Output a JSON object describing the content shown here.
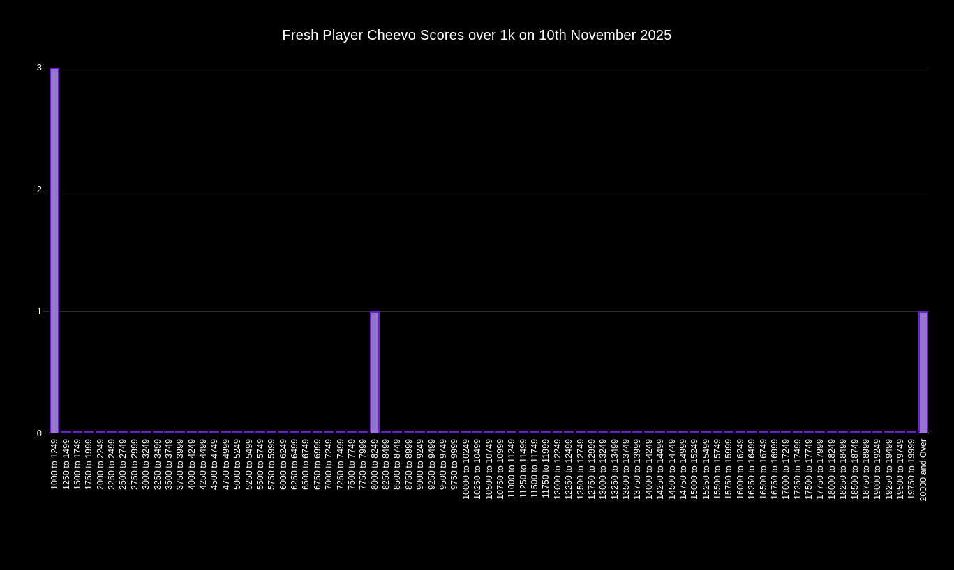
{
  "title": "Fresh Player Cheevo Scores over 1k on 10th November 2025",
  "colors": {
    "background": "#000000",
    "text": "#ffffff",
    "bar_fill": "#9575cd",
    "bar_border": "#6a1fc8",
    "gridline": "#2a2a2a",
    "axis_line": "#cfcfcf"
  },
  "chart_data": {
    "type": "bar",
    "title": "Fresh Player Cheevo Scores over 1k on 10th November 2025",
    "xlabel": "",
    "ylabel": "",
    "ylim": [
      0,
      3
    ],
    "yticks": [
      0,
      1,
      2,
      3
    ],
    "grid": true,
    "legend": false,
    "bar_color": "#9575cd",
    "bar_border_color": "#6a1fc8",
    "categories": [
      "1000 to 1249",
      "1250 to 1499",
      "1500 to 1749",
      "1750 to 1999",
      "2000 to 2249",
      "2250 to 2499",
      "2500 to 2749",
      "2750 to 2999",
      "3000 to 3249",
      "3250 to 3499",
      "3500 to 3749",
      "3750 to 3999",
      "4000 to 4249",
      "4250 to 4499",
      "4500 to 4749",
      "4750 to 4999",
      "5000 to 5249",
      "5250 to 5499",
      "5500 to 5749",
      "5750 to 5999",
      "6000 to 6249",
      "6250 to 6499",
      "6500 to 6749",
      "6750 to 6999",
      "7000 to 7249",
      "7250 to 7499",
      "7500 to 7749",
      "7750 to 7999",
      "8000 to 8249",
      "8250 to 8499",
      "8500 to 8749",
      "8750 to 8999",
      "9000 to 9249",
      "9250 to 9499",
      "9500 to 9749",
      "9750 to 9999",
      "10000 to 10249",
      "10250 to 10499",
      "10500 to 10749",
      "10750 to 10999",
      "11000 to 11249",
      "11250 to 11499",
      "11500 to 11749",
      "11750 to 11999",
      "12000 to 12249",
      "12250 to 12499",
      "12500 to 12749",
      "12750 to 12999",
      "13000 to 13249",
      "13250 to 13499",
      "13500 to 13749",
      "13750 to 13999",
      "14000 to 14249",
      "14250 to 14499",
      "14500 to 14749",
      "14750 to 14999",
      "15000 to 15249",
      "15250 to 15499",
      "15500 to 15749",
      "15750 to 15999",
      "16000 to 16249",
      "16250 to 16499",
      "16500 to 16749",
      "16750 to 16999",
      "17000 to 17249",
      "17250 to 17499",
      "17500 to 17749",
      "17750 to 17999",
      "18000 to 18249",
      "18250 to 18499",
      "18500 to 18749",
      "18750 to 18999",
      "19000 to 19249",
      "19250 to 19499",
      "19500 to 19749",
      "19750 to 19999",
      "20000 and Over"
    ],
    "values": [
      3,
      0,
      0,
      0,
      0,
      0,
      0,
      0,
      0,
      0,
      0,
      0,
      0,
      0,
      0,
      0,
      0,
      0,
      0,
      0,
      0,
      0,
      0,
      0,
      0,
      0,
      0,
      0,
      1,
      0,
      0,
      0,
      0,
      0,
      0,
      0,
      0,
      0,
      0,
      0,
      0,
      0,
      0,
      0,
      0,
      0,
      0,
      0,
      0,
      0,
      0,
      0,
      0,
      0,
      0,
      0,
      0,
      0,
      0,
      0,
      0,
      0,
      0,
      0,
      0,
      0,
      0,
      0,
      0,
      0,
      0,
      0,
      0,
      0,
      0,
      0,
      1
    ]
  }
}
